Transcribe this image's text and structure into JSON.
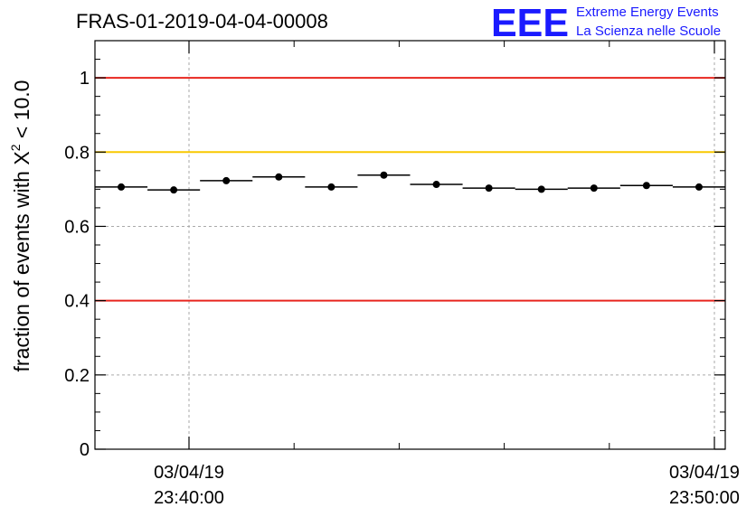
{
  "chart_data": {
    "type": "scatter",
    "title": "FRAS-01-2019-04-04-00008",
    "ylabel_prefix": "fraction of events with X",
    "ylabel_sup": "2",
    "ylabel_suffix": " < 10.0",
    "ylim": [
      0,
      1.1
    ],
    "y_ticks": [
      {
        "value": 0,
        "label": "0"
      },
      {
        "value": 0.2,
        "label": "0.2"
      },
      {
        "value": 0.4,
        "label": "0.4"
      },
      {
        "value": 0.6,
        "label": "0.6"
      },
      {
        "value": 0.8,
        "label": "0.8"
      },
      {
        "value": 1,
        "label": "1"
      }
    ],
    "x_ticks": [
      {
        "date": "03/04/19",
        "time": "23:40:00"
      },
      {
        "date": "03/04/19",
        "time": "23:50:00"
      }
    ],
    "reference_lines": [
      {
        "value": 1.0,
        "color": "#e8261f"
      },
      {
        "value": 0.8,
        "color": "#f8c800"
      },
      {
        "value": 0.4,
        "color": "#e8261f"
      }
    ],
    "grid": true,
    "points": [
      {
        "y": 0.706
      },
      {
        "y": 0.698
      },
      {
        "y": 0.723
      },
      {
        "y": 0.733
      },
      {
        "y": 0.706
      },
      {
        "y": 0.738
      },
      {
        "y": 0.713
      },
      {
        "y": 0.703
      },
      {
        "y": 0.7
      },
      {
        "y": 0.703
      },
      {
        "y": 0.71
      },
      {
        "y": 0.706
      }
    ]
  },
  "logo": {
    "letters": "EEE",
    "line1": "Extreme Energy Events",
    "line2": "La Scienza nelle Scuole",
    "color": "#1a1aff"
  }
}
